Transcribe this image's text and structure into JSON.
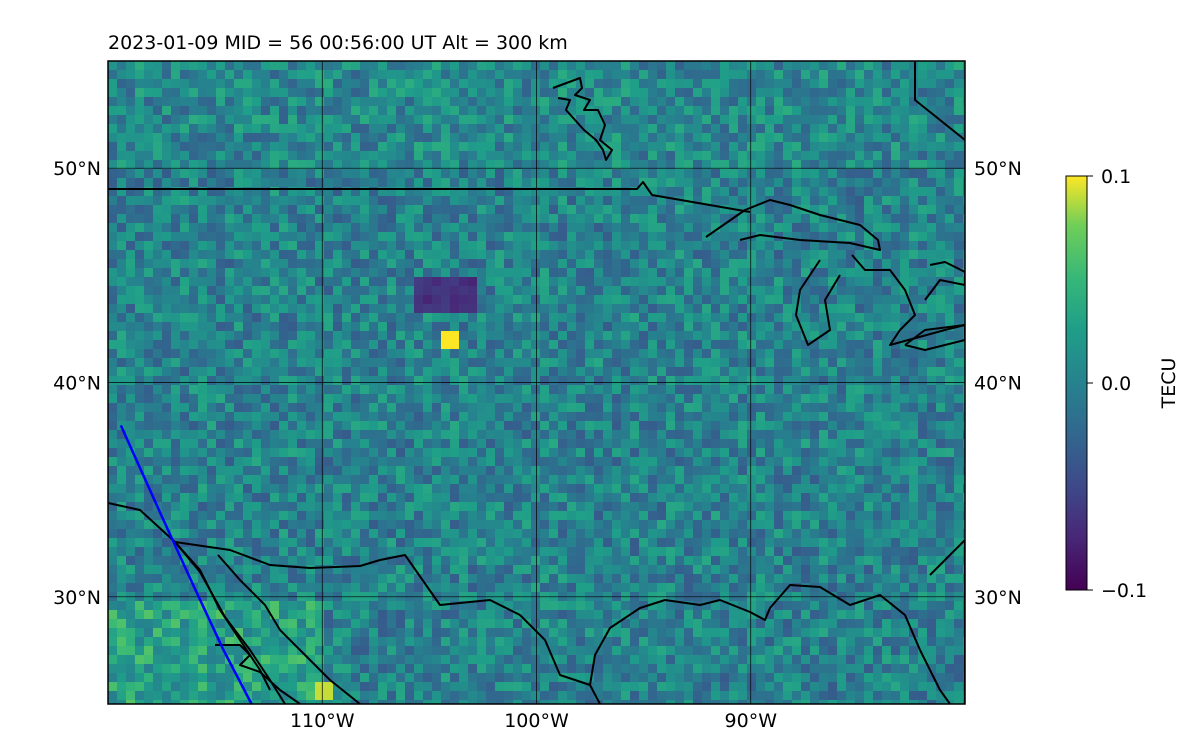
{
  "title": "2023-01-09  MID =  56    00:56:00  UT  Alt = 300 km",
  "chart_data": {
    "type": "heatmap",
    "title": "2023-01-09  MID =  56    00:56:00  UT  Alt = 300 km",
    "x_axis": {
      "range": [
        -120,
        -80
      ],
      "ticks": [
        -110,
        -100,
        -90
      ],
      "tick_labels": [
        "110°W",
        "100°W",
        "90°W"
      ]
    },
    "y_axis": {
      "range": [
        25,
        55
      ],
      "ticks": [
        30,
        40,
        50
      ],
      "tick_labels": [
        "30°N",
        "40°N",
        "50°N"
      ]
    },
    "grid": true,
    "colorbar": {
      "label": "TECU",
      "min": -0.1,
      "max": 0.1,
      "ticks": [
        0.1,
        0.0,
        -0.1
      ],
      "tick_labels": [
        "0.1",
        "0.0",
        "−0.1"
      ],
      "colormap": "viridis"
    },
    "field_summary": {
      "dominant_value": 0.0,
      "low_cluster": {
        "lon_range": [
          -106,
          -103
        ],
        "lat_range": [
          43.5,
          45
        ],
        "value": -0.1
      },
      "high_spots": [
        {
          "lon": -104.2,
          "lat": 42.1,
          "value": 0.1
        },
        {
          "lon": -110.3,
          "lat": 26.0,
          "value": 0.09
        }
      ]
    },
    "track": {
      "color": "#0000ff",
      "points": [
        [
          -119.4,
          38.0
        ],
        [
          -117.6,
          34.0
        ],
        [
          -116.0,
          30.5
        ],
        [
          -114.6,
          27.5
        ],
        [
          -113.3,
          25.0
        ]
      ]
    },
    "coastline_color": "#000000"
  }
}
